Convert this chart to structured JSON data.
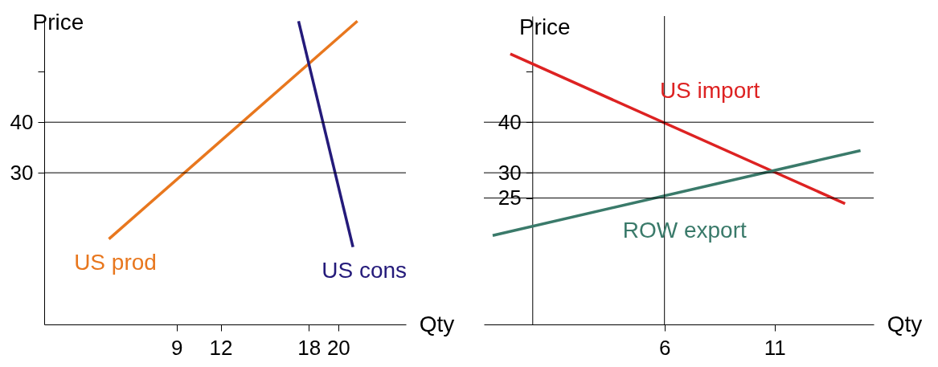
{
  "chart_data": [
    {
      "type": "line",
      "xlabel": "Qty",
      "ylabel": "Price",
      "xlim": [
        0,
        24.6
      ],
      "ylim": [
        0,
        61
      ],
      "xticks": [
        9,
        12,
        18,
        20
      ],
      "yticks": [
        30,
        40,
        {
          "value": 50,
          "label": null
        }
      ],
      "grid": false,
      "legend": false,
      "ref_lines": [
        {
          "axis": "y",
          "value": 40,
          "color": "#000000"
        },
        {
          "axis": "y",
          "value": 30,
          "color": "#000000"
        }
      ],
      "series": [
        {
          "name": "US prod",
          "color": "#e8771e",
          "x": [
            4.4,
            21.3
          ],
          "values": [
            16.9,
            60
          ]
        },
        {
          "name": "US cons",
          "color": "#241a7a",
          "x": [
            17.3,
            21.0
          ],
          "values": [
            60,
            15.3
          ]
        }
      ]
    },
    {
      "type": "line",
      "xlabel": "Qty",
      "ylabel": "Price",
      "xlim": [
        -2.2,
        15.5
      ],
      "ylim": [
        0,
        61
      ],
      "xticks": [
        6,
        11
      ],
      "yticks": [
        25,
        30,
        40,
        {
          "value": 50,
          "label": null
        }
      ],
      "grid": false,
      "legend": false,
      "ref_lines": [
        {
          "axis": "y",
          "value": 40,
          "color": "#000000"
        },
        {
          "axis": "y",
          "value": 30,
          "color": "#000000"
        },
        {
          "axis": "y",
          "value": 25,
          "color": "#000000"
        },
        {
          "axis": "x",
          "value": 6,
          "color": "#000000"
        }
      ],
      "series": [
        {
          "name": "US import",
          "color": "#dd2222",
          "x": [
            -1.0,
            14.2
          ],
          "values": [
            53.5,
            23.9
          ]
        },
        {
          "name": "ROW export",
          "color": "#3a7a6a",
          "x": [
            -1.8,
            14.9
          ],
          "values": [
            17.6,
            34.4
          ]
        }
      ]
    }
  ]
}
